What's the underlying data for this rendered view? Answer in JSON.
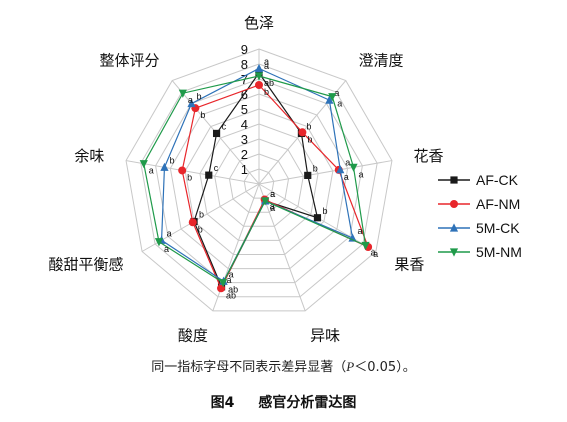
{
  "chart_data": {
    "type": "radar",
    "axes": [
      "色泽",
      "澄清度",
      "花香",
      "果香",
      "异味",
      "酸度",
      "酸甜平衡感",
      "余味",
      "整体评分"
    ],
    "scale_ticks": [
      "1",
      "2",
      "3",
      "4",
      "5",
      "6",
      "7",
      "8",
      "9"
    ],
    "rmin": 0,
    "rmax": 9,
    "series": [
      {
        "name": "AF-CK",
        "color": "#1a1a1a",
        "marker": "square",
        "values": [
          7.4,
          4.4,
          3.3,
          4.5,
          1.2,
          7.3,
          5.0,
          3.4,
          4.4
        ],
        "sig": [
          "a",
          "b",
          "b",
          "b",
          "a",
          "a",
          "b",
          "c",
          "c"
        ]
      },
      {
        "name": "AF-NM",
        "color": "#e8262b",
        "marker": "circle",
        "values": [
          6.6,
          4.5,
          5.4,
          8.4,
          1.1,
          7.4,
          5.1,
          5.2,
          6.6
        ],
        "sig": [
          "b",
          "b",
          "a",
          "a",
          "a",
          "ab",
          "b",
          "b",
          "b"
        ]
      },
      {
        "name": "5M-CK",
        "color": "#2e72b8",
        "marker": "triangle-up",
        "values": [
          7.7,
          7.3,
          5.5,
          7.2,
          1.2,
          6.9,
          7.5,
          6.4,
          7.0
        ],
        "sig": [
          "a",
          "a",
          "a",
          "a",
          "a",
          "a",
          "a",
          "b",
          "b"
        ]
      },
      {
        "name": "5M-NM",
        "color": "#1f9a4a",
        "marker": "triangle-down",
        "values": [
          7.2,
          7.6,
          6.4,
          8.2,
          1.2,
          7.0,
          7.7,
          7.8,
          7.9
        ],
        "sig": [
          "ab",
          "a",
          "a",
          "a",
          "a",
          "ab",
          "a",
          "a",
          "a"
        ]
      }
    ]
  },
  "note": {
    "prefix": "同一指标字母不同表示差异显著（",
    "italic": "P",
    "suffix": "＜0.05）。"
  },
  "caption": {
    "number": "图4",
    "title": "感官分析雷达图"
  }
}
